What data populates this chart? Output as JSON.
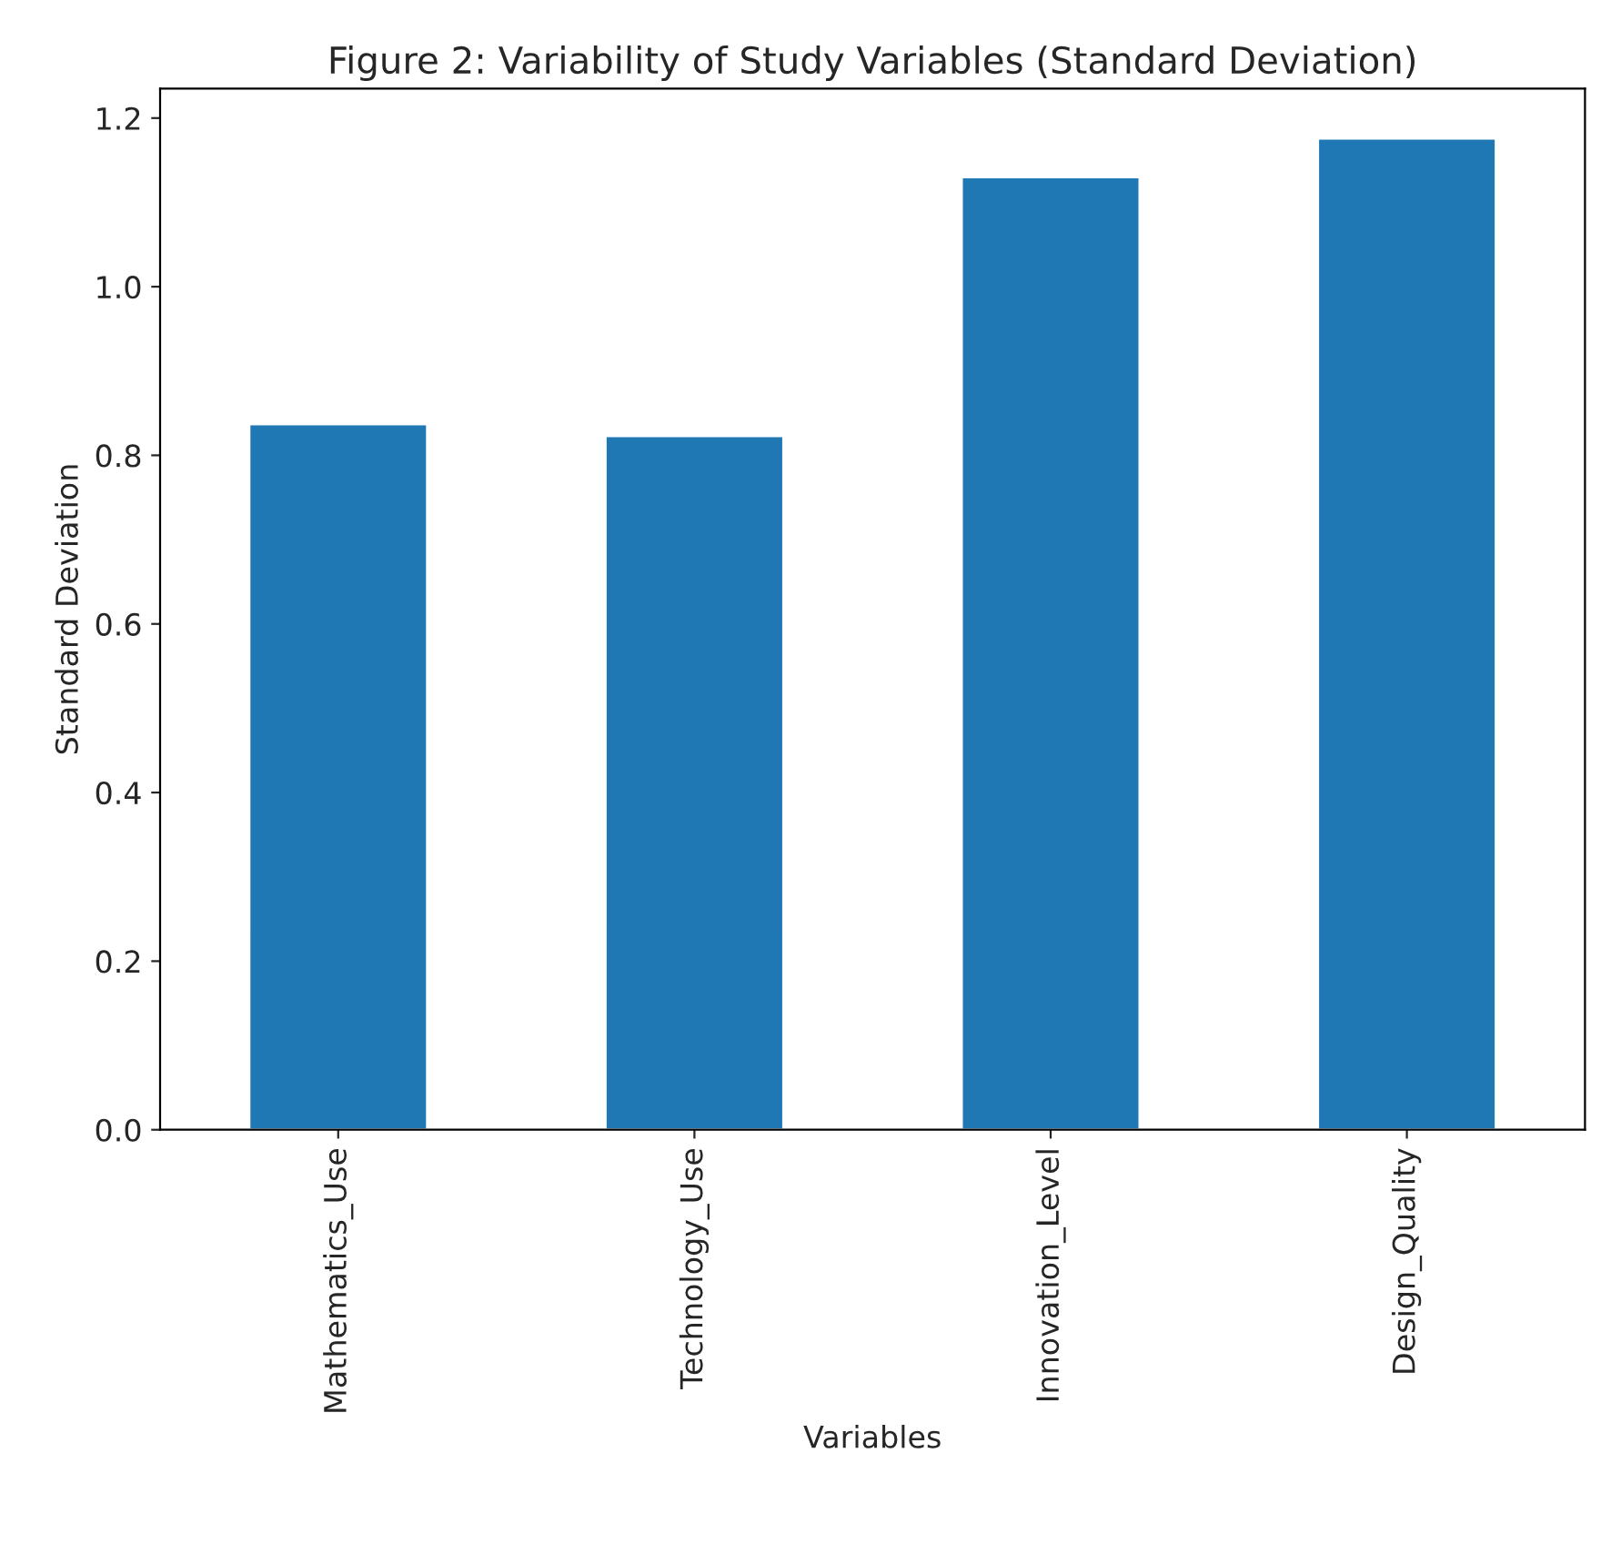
{
  "chart_data": {
    "type": "bar",
    "title": "Figure 2: Variability of Study Variables (Standard Deviation)",
    "xlabel": "Variables",
    "ylabel": "Standard Deviation",
    "categories": [
      "Mathematics_Use",
      "Technology_Use",
      "Innovation_Level",
      "Design_Quality"
    ],
    "values": [
      0.837,
      0.823,
      1.13,
      1.176
    ],
    "color": "#1f77b4",
    "ylim": [
      0,
      1.235
    ],
    "yticks": [
      {
        "value": 0,
        "label": "0.0"
      },
      {
        "value": 0.2,
        "label": "0.2"
      },
      {
        "value": 0.4,
        "label": "0.4"
      },
      {
        "value": 0.6,
        "label": "0.6"
      },
      {
        "value": 0.8,
        "label": "0.8"
      },
      {
        "value": 1.0,
        "label": "1.0"
      },
      {
        "value": 1.2,
        "label": "1.2"
      }
    ],
    "grid": false
  }
}
